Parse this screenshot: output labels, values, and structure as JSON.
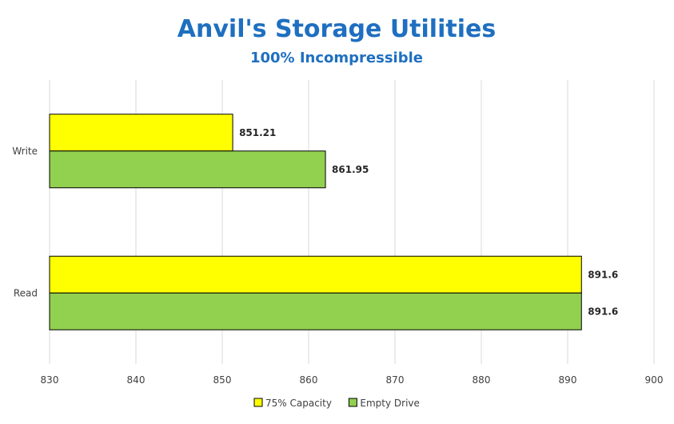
{
  "chart_data": {
    "type": "bar",
    "orientation": "horizontal",
    "title": "Anvil's Storage Utilities",
    "subtitle": "100% Incompressible",
    "categories": [
      "Write",
      "Read"
    ],
    "series": [
      {
        "name": "75% Capacity",
        "values": [
          851.21,
          891.6
        ],
        "color": "#ffff00"
      },
      {
        "name": "Empty Drive",
        "values": [
          861.95,
          891.6
        ],
        "color": "#92d050"
      }
    ],
    "xlim": [
      830,
      900
    ],
    "ticks": [
      "830",
      "840",
      "850",
      "860",
      "870",
      "880",
      "890",
      "900"
    ],
    "grid": true,
    "legend_position": "bottom"
  },
  "colors": {
    "title": "#1f6fc0",
    "bar_outline": "#000000",
    "grid": "#d9d9d9"
  }
}
